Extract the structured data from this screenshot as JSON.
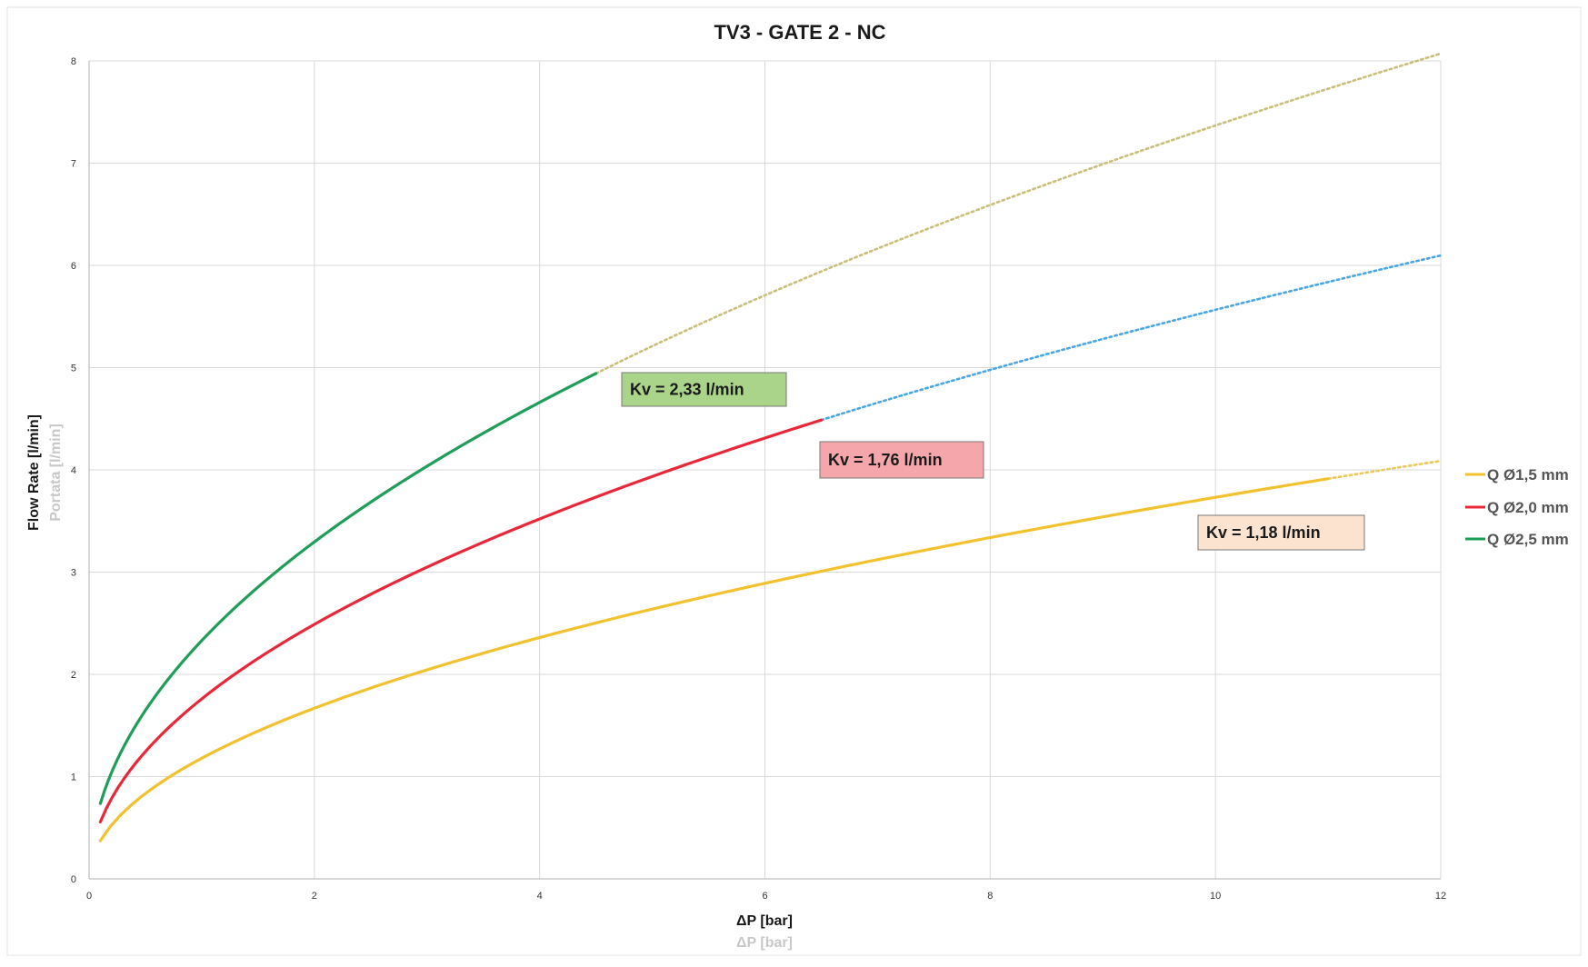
{
  "chart_data": {
    "type": "line",
    "title": "TV3 - GATE 2 - NC",
    "xlabel": "ΔP [bar]",
    "xlabel_secondary": "ΔP [bar]",
    "ylabel": "Flow Rate [l/min]",
    "ylabel_secondary": "Portata [l/min]",
    "xlim": [
      0,
      12
    ],
    "ylim": [
      0,
      8
    ],
    "x_ticks": [
      0,
      2,
      4,
      6,
      8,
      10,
      12
    ],
    "y_ticks": [
      0,
      1,
      2,
      3,
      4,
      5,
      6,
      7,
      8
    ],
    "grid": true,
    "legend_position": "right",
    "series": [
      {
        "name": "Q Ø1,5 mm",
        "kv": 1.18,
        "kv_label": "Kv = 1,18 l/min",
        "solid_range": [
          0.1,
          11.0
        ],
        "dotted_range": [
          11.0,
          12.0
        ],
        "color": "#f2c12e",
        "dotted_color": "#e8c95a",
        "label_bg": "#fbe3d0",
        "sample_points": [
          [
            0.1,
            0.37
          ],
          [
            1,
            1.18
          ],
          [
            2,
            1.67
          ],
          [
            4,
            2.36
          ],
          [
            6,
            2.89
          ],
          [
            8,
            3.34
          ],
          [
            11,
            3.91
          ],
          [
            12,
            4.09
          ]
        ]
      },
      {
        "name": "Q Ø2,0 mm",
        "kv": 1.76,
        "kv_label": "Kv = 1,76 l/min",
        "solid_range": [
          0.1,
          6.5
        ],
        "dotted_range": [
          6.5,
          12.0
        ],
        "color": "#e8283a",
        "dotted_color": "#4aa6e0",
        "label_bg": "#f4a6ab",
        "sample_points": [
          [
            0.1,
            0.56
          ],
          [
            1,
            1.76
          ],
          [
            2,
            2.49
          ],
          [
            4,
            3.52
          ],
          [
            6.5,
            4.49
          ],
          [
            12,
            6.1
          ]
        ]
      },
      {
        "name": "Q Ø2,5 mm",
        "kv": 2.33,
        "kv_label": "Kv = 2,33 l/min",
        "solid_range": [
          0.1,
          4.5
        ],
        "dotted_range": [
          4.5,
          12.0
        ],
        "color": "#1f9e5a",
        "dotted_color": "#c9bf7a",
        "label_bg": "#a9d48a",
        "sample_points": [
          [
            0.1,
            0.74
          ],
          [
            1,
            2.33
          ],
          [
            2,
            3.3
          ],
          [
            4,
            4.66
          ],
          [
            4.5,
            4.94
          ],
          [
            12,
            8.07
          ]
        ]
      }
    ]
  }
}
